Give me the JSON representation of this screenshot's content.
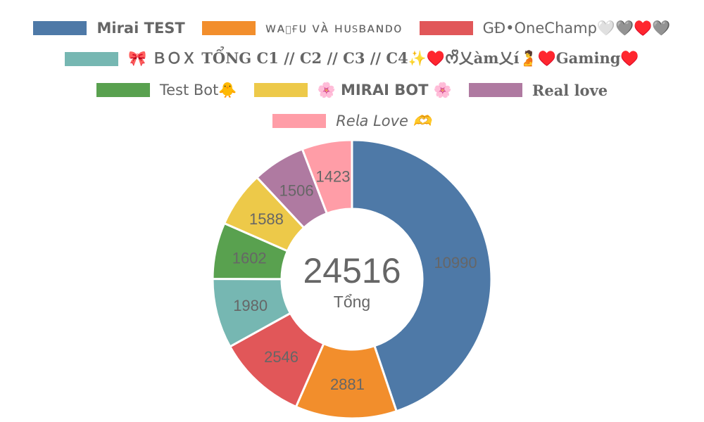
{
  "chart_data": {
    "type": "pie",
    "variant": "doughnut",
    "legend_position": "top",
    "series": [
      {
        "name": "Mirai TEST",
        "value": 10990,
        "color": "#4e79a7"
      },
      {
        "name": "ᴡᴀɪғᴜ ᴠᴀ̀ ʜᴜsʙᴀɴᴅᴏ",
        "value": 2881,
        "color": "#f28e2c"
      },
      {
        "name": "GĐ•OneChamp🤍🩶♥️🩶",
        "value": 2546,
        "color": "#e15759"
      },
      {
        "name": "🎀 ＢＯＸ 𝐓Ổ𝐍𝐆 𝐂𝟏 // 𝐂𝟐 // 𝐂𝟑 // 𝐂𝟒✨♥️ᰔᩚ乂àm乂í🫄♥️𝐆𝐚𝐦𝐢𝐧𝐠♥️",
        "value": 1980,
        "color": "#76b7b2"
      },
      {
        "name": "Test Bot🐥",
        "value": 1602,
        "color": "#59a14f"
      },
      {
        "name": "🌸 MIRAI BOT 🌸",
        "value": 1588,
        "color": "#edc949"
      },
      {
        "name": "𝐑𝐞𝐚𝐥 𝐥𝐨𝐯𝐞",
        "value": 1506,
        "color": "#af7aa1"
      },
      {
        "name": "𝘙𝘦𝘭𝘢 𝘓𝘰𝘷𝘦 🫶",
        "value": 1423,
        "color": "#ff9da7"
      }
    ],
    "total": {
      "value": "24516",
      "label": "Tổng"
    }
  }
}
